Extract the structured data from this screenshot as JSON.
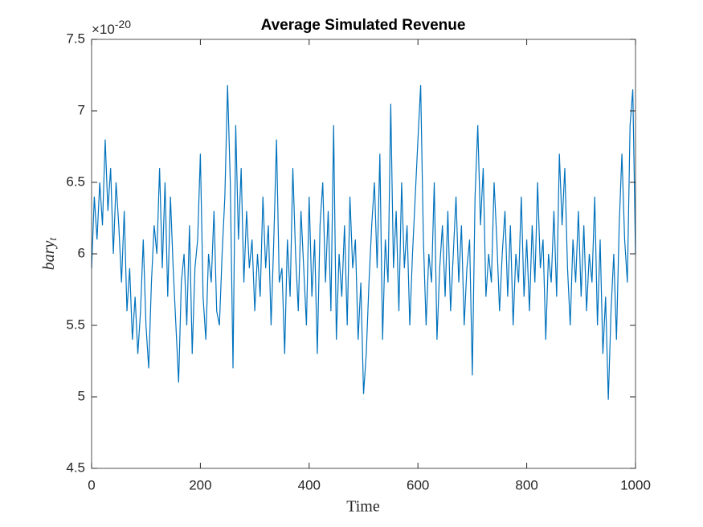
{
  "chart_data": {
    "type": "line",
    "title": "Average Simulated Revenue",
    "xlabel": "Time",
    "ylabel": "bary",
    "ylabel_sub": "t",
    "y_multiplier": "×10",
    "y_exponent": -20,
    "color": "#0072bd",
    "xlim": [
      0,
      1000
    ],
    "xticks": [
      0,
      200,
      400,
      600,
      800,
      1000
    ],
    "ylim": [
      4.5,
      7.5
    ],
    "yticks": [
      4.5,
      5,
      5.5,
      6,
      6.5,
      7,
      7.5
    ],
    "x": [
      0,
      5,
      10,
      15,
      20,
      25,
      30,
      35,
      40,
      45,
      50,
      55,
      60,
      65,
      70,
      75,
      80,
      85,
      90,
      95,
      100,
      105,
      110,
      115,
      120,
      125,
      130,
      135,
      140,
      145,
      150,
      155,
      160,
      165,
      170,
      175,
      180,
      185,
      190,
      195,
      200,
      205,
      210,
      215,
      220,
      225,
      230,
      235,
      240,
      245,
      250,
      255,
      260,
      265,
      270,
      275,
      280,
      285,
      290,
      295,
      300,
      305,
      310,
      315,
      320,
      325,
      330,
      335,
      340,
      345,
      350,
      355,
      360,
      365,
      370,
      375,
      380,
      385,
      390,
      395,
      400,
      405,
      410,
      415,
      420,
      425,
      430,
      435,
      440,
      445,
      450,
      455,
      460,
      465,
      470,
      475,
      480,
      485,
      490,
      495,
      500,
      505,
      510,
      515,
      520,
      525,
      530,
      535,
      540,
      545,
      550,
      555,
      560,
      565,
      570,
      575,
      580,
      585,
      590,
      595,
      600,
      605,
      610,
      615,
      620,
      625,
      630,
      635,
      640,
      645,
      650,
      655,
      660,
      665,
      670,
      675,
      680,
      685,
      690,
      695,
      700,
      705,
      710,
      715,
      720,
      725,
      730,
      735,
      740,
      745,
      750,
      755,
      760,
      765,
      770,
      775,
      780,
      785,
      790,
      795,
      800,
      805,
      810,
      815,
      820,
      825,
      830,
      835,
      840,
      845,
      850,
      855,
      860,
      865,
      870,
      875,
      880,
      885,
      890,
      895,
      900,
      905,
      910,
      915,
      920,
      925,
      930,
      935,
      940,
      945,
      950,
      955,
      960,
      965,
      970,
      975,
      980,
      985,
      990,
      995,
      1000
    ],
    "values": [
      5.9,
      6.4,
      6.1,
      6.5,
      6.2,
      6.8,
      6.3,
      6.6,
      6.0,
      6.5,
      6.2,
      5.8,
      6.3,
      5.6,
      5.9,
      5.4,
      5.7,
      5.3,
      5.6,
      6.1,
      5.5,
      5.2,
      5.8,
      6.2,
      6.0,
      6.6,
      5.9,
      6.5,
      5.7,
      6.4,
      5.9,
      5.5,
      5.1,
      5.8,
      6.0,
      5.5,
      6.2,
      5.3,
      5.9,
      6.1,
      6.7,
      5.7,
      5.4,
      6.0,
      5.8,
      6.3,
      5.6,
      5.5,
      6.0,
      6.4,
      7.18,
      6.5,
      5.2,
      6.9,
      6.1,
      6.6,
      5.8,
      6.3,
      5.9,
      6.1,
      5.6,
      6.0,
      5.7,
      6.4,
      5.9,
      6.2,
      5.5,
      6.1,
      6.8,
      5.8,
      5.9,
      5.3,
      6.1,
      5.7,
      6.6,
      6.0,
      5.6,
      6.3,
      5.9,
      5.5,
      6.4,
      5.7,
      6.1,
      5.3,
      6.2,
      6.5,
      5.8,
      6.3,
      5.6,
      6.9,
      5.4,
      6.0,
      5.7,
      6.2,
      5.5,
      6.4,
      5.9,
      6.1,
      5.4,
      5.8,
      5.02,
      5.3,
      5.8,
      6.2,
      6.5,
      5.9,
      6.7,
      5.4,
      6.1,
      5.8,
      7.05,
      5.9,
      6.3,
      5.6,
      6.5,
      5.9,
      6.2,
      5.5,
      6.0,
      6.4,
      6.8,
      7.18,
      6.1,
      5.5,
      6.0,
      5.8,
      6.5,
      5.4,
      5.9,
      6.2,
      5.7,
      6.3,
      5.6,
      6.0,
      6.4,
      5.8,
      6.2,
      5.5,
      5.9,
      6.1,
      5.15,
      6.4,
      6.9,
      6.2,
      6.6,
      5.7,
      6.0,
      5.8,
      6.5,
      6.1,
      5.6,
      6.0,
      6.3,
      5.7,
      6.2,
      5.5,
      6.0,
      5.8,
      6.4,
      5.7,
      6.1,
      5.6,
      6.2,
      5.8,
      6.5,
      5.9,
      6.1,
      5.4,
      6.0,
      5.8,
      6.3,
      5.7,
      6.7,
      6.2,
      6.6,
      5.9,
      5.5,
      6.1,
      5.8,
      6.3,
      5.7,
      6.2,
      5.6,
      6.0,
      5.8,
      6.4,
      5.5,
      6.1,
      5.3,
      5.7,
      4.98,
      5.6,
      6.0,
      5.4,
      6.2,
      6.7,
      6.1,
      5.8,
      6.9,
      7.15,
      6.0
    ]
  }
}
